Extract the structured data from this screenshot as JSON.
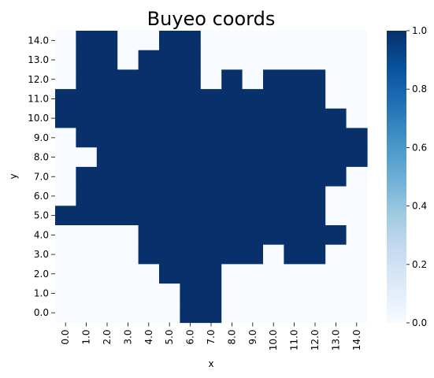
{
  "chart_data": {
    "type": "heatmap",
    "title": "Buyeo coords",
    "xlabel": "x",
    "ylabel": "y",
    "x_tick_labels": [
      "0.0",
      "1.0",
      "2.0",
      "3.0",
      "4.0",
      "5.0",
      "6.0",
      "7.0",
      "8.0",
      "9.0",
      "10.0",
      "11.0",
      "12.0",
      "13.0",
      "14.0"
    ],
    "y_tick_labels": [
      "14.0",
      "13.0",
      "12.0",
      "11.0",
      "10.0",
      "9.0",
      "8.0",
      "7.0",
      "6.0",
      "5.0",
      "4.0",
      "3.0",
      "2.0",
      "1.0",
      "0.0"
    ],
    "value_range": [
      0.0,
      1.0
    ],
    "colormap": "Blues",
    "color_low": "#f7fbff",
    "color_high": "#08306b",
    "colorbar_ticks": [
      {
        "value": 0.0,
        "label": "0.0"
      },
      {
        "value": 0.2,
        "label": "0.2"
      },
      {
        "value": 0.4,
        "label": "0.4"
      },
      {
        "value": 0.6,
        "label": "0.6"
      },
      {
        "value": 0.8,
        "label": "0.8"
      },
      {
        "value": 1.0,
        "label": "1.0"
      }
    ],
    "rows_top_to_bottom": [
      [
        0,
        1,
        1,
        0,
        0,
        1,
        1,
        0,
        0,
        0,
        0,
        0,
        0,
        0,
        0
      ],
      [
        0,
        1,
        1,
        0,
        1,
        1,
        1,
        0,
        0,
        0,
        0,
        0,
        0,
        0,
        0
      ],
      [
        0,
        1,
        1,
        1,
        1,
        1,
        1,
        0,
        1,
        0,
        1,
        1,
        1,
        0,
        0
      ],
      [
        1,
        1,
        1,
        1,
        1,
        1,
        1,
        1,
        1,
        1,
        1,
        1,
        1,
        0,
        0
      ],
      [
        1,
        1,
        1,
        1,
        1,
        1,
        1,
        1,
        1,
        1,
        1,
        1,
        1,
        1,
        0
      ],
      [
        0,
        1,
        1,
        1,
        1,
        1,
        1,
        1,
        1,
        1,
        1,
        1,
        1,
        1,
        1
      ],
      [
        0,
        0,
        1,
        1,
        1,
        1,
        1,
        1,
        1,
        1,
        1,
        1,
        1,
        1,
        1
      ],
      [
        0,
        1,
        1,
        1,
        1,
        1,
        1,
        1,
        1,
        1,
        1,
        1,
        1,
        1,
        0
      ],
      [
        0,
        1,
        1,
        1,
        1,
        1,
        1,
        1,
        1,
        1,
        1,
        1,
        1,
        0,
        0
      ],
      [
        1,
        1,
        1,
        1,
        1,
        1,
        1,
        1,
        1,
        1,
        1,
        1,
        1,
        0,
        0
      ],
      [
        0,
        0,
        0,
        0,
        1,
        1,
        1,
        1,
        1,
        1,
        1,
        1,
        1,
        1,
        0
      ],
      [
        0,
        0,
        0,
        0,
        1,
        1,
        1,
        1,
        1,
        1,
        0,
        1,
        1,
        0,
        0
      ],
      [
        0,
        0,
        0,
        0,
        0,
        1,
        1,
        1,
        0,
        0,
        0,
        0,
        0,
        0,
        0
      ],
      [
        0,
        0,
        0,
        0,
        0,
        0,
        1,
        1,
        0,
        0,
        0,
        0,
        0,
        0,
        0
      ],
      [
        0,
        0,
        0,
        0,
        0,
        0,
        1,
        1,
        0,
        0,
        0,
        0,
        0,
        0,
        0
      ]
    ]
  }
}
